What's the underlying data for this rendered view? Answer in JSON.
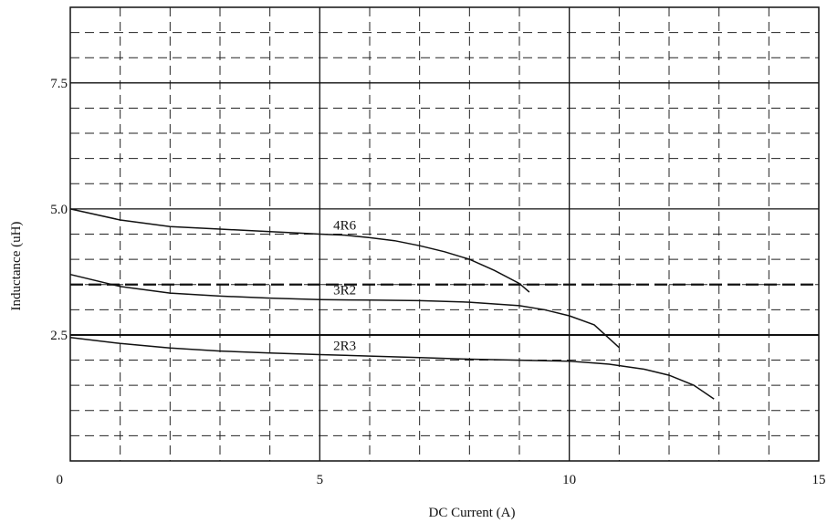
{
  "chart_data": {
    "type": "line",
    "xlabel": "DC Current (A)",
    "ylabel": "Inductance (uH)",
    "xlim": [
      0,
      15
    ],
    "ylim": [
      0,
      9
    ],
    "x_ticks": [
      0,
      5,
      10,
      15
    ],
    "x_tick_labels": [
      "0",
      "5",
      "10",
      "15"
    ],
    "y_ticks": [
      2.5,
      5.0,
      7.5
    ],
    "y_tick_labels": [
      "2.5",
      "5.0",
      "7.5"
    ],
    "grid": true,
    "reference_lines": [
      {
        "y": 3.5,
        "style": "bold-dashed"
      },
      {
        "y": 2.5,
        "style": "solid"
      }
    ],
    "series": [
      {
        "name": "4R6",
        "x": [
          0,
          1,
          2,
          3,
          4,
          5,
          5.5,
          6,
          6.5,
          7,
          7.5,
          8,
          8.5,
          9,
          9.2
        ],
        "y": [
          5.0,
          4.78,
          4.65,
          4.6,
          4.55,
          4.5,
          4.48,
          4.43,
          4.37,
          4.27,
          4.15,
          4.0,
          3.78,
          3.52,
          3.35
        ]
      },
      {
        "name": "3R2",
        "x": [
          0,
          1,
          2,
          3,
          4,
          5,
          6,
          7,
          8,
          9,
          9.5,
          10,
          10.5,
          11
        ],
        "y": [
          3.7,
          3.46,
          3.33,
          3.27,
          3.23,
          3.2,
          3.19,
          3.18,
          3.15,
          3.08,
          3.0,
          2.88,
          2.7,
          2.25
        ]
      },
      {
        "name": "2R3",
        "x": [
          0,
          1,
          2,
          3,
          4,
          5,
          6,
          7,
          8,
          9,
          10,
          10.8,
          11.5,
          12,
          12.5,
          12.9
        ],
        "y": [
          2.45,
          2.33,
          2.24,
          2.18,
          2.14,
          2.11,
          2.08,
          2.05,
          2.02,
          2.0,
          1.98,
          1.92,
          1.82,
          1.7,
          1.5,
          1.23
        ]
      }
    ]
  }
}
